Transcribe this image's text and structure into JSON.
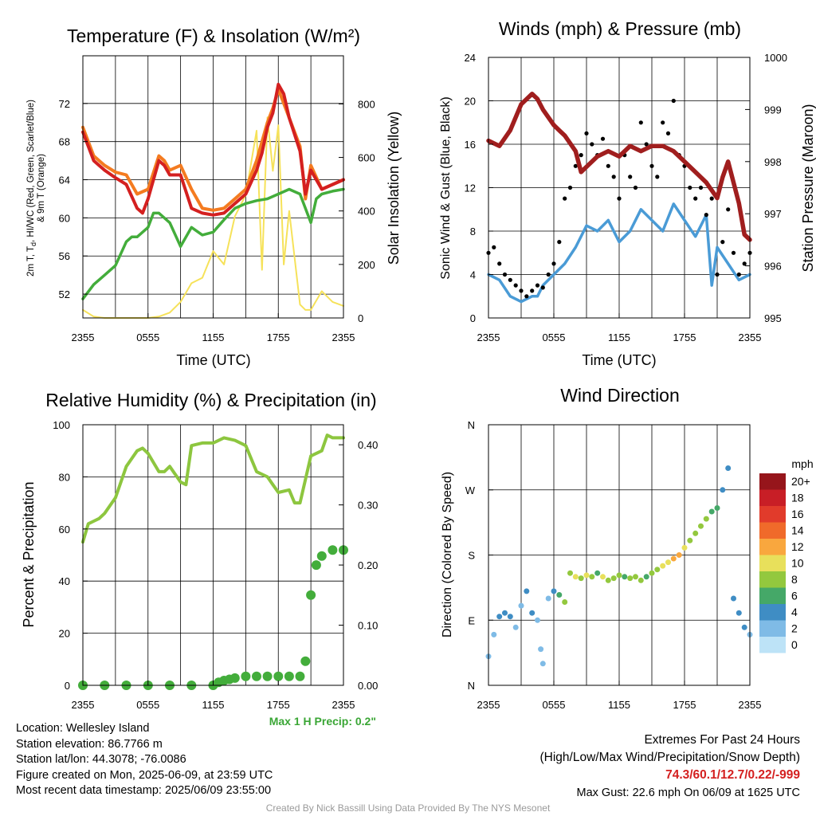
{
  "panels": {
    "temp": {
      "title": "Temperature (F) & Insolation (W/m²)",
      "ylabel_left_1": "2m T, T",
      "ylabel_left_sub": "d",
      "ylabel_left_2": ", HI/WC (Red, Green, Scarlet/Blue)",
      "ylabel_left_3": "& 9m T (Orange)",
      "ylabel_right": "Solar Insolation (Yellow)",
      "xlabel": "Time (UTC)"
    },
    "wind": {
      "title": "Winds (mph) & Pressure (mb)",
      "ylabel_left": "Sonic Wind & Gust (Blue, Black)",
      "ylabel_right": "Station Pressure (Maroon)",
      "xlabel": "Time (UTC)"
    },
    "rh": {
      "title": "Relative Humidity (%) & Precipitation (in)",
      "ylabel_left": "Percent & Precipitation",
      "max_precip": "Max 1 H Precip: 0.2\""
    },
    "dir": {
      "title": "Wind Direction",
      "ylabel_left": "Direction (Colored By Speed)",
      "legend_title": "mph"
    }
  },
  "chart_data": [
    {
      "type": "line",
      "title": "Temperature (F) & Insolation (W/m²)",
      "xlabel": "Time (UTC)",
      "x_ticks": [
        "2355",
        "0555",
        "1155",
        "1755",
        "2355"
      ],
      "x_hours": [
        0,
        24
      ],
      "ylim_left": [
        49.5,
        77
      ],
      "yticks_left": [
        52,
        56,
        60,
        64,
        68,
        72
      ],
      "ylim_right": [
        0,
        980
      ],
      "yticks_right": [
        0,
        200,
        400,
        600,
        800
      ],
      "series": [
        {
          "name": "9m T (Orange)",
          "axis": "left",
          "color": "#f47b20",
          "x": [
            0,
            0.5,
            1,
            1.5,
            2,
            3,
            4,
            5,
            6,
            7,
            7.5,
            8,
            9,
            10,
            11,
            12,
            13,
            14,
            15,
            16,
            17,
            17.5,
            18,
            18.5,
            19,
            20,
            20.5,
            21,
            22,
            23,
            24
          ],
          "y": [
            69.5,
            68,
            66.5,
            66,
            65.5,
            64.8,
            64.5,
            62.5,
            63,
            66.5,
            66,
            65,
            65.5,
            63,
            61,
            60.8,
            61,
            62,
            63,
            66,
            70,
            71.5,
            73.5,
            72,
            70.5,
            67.5,
            62,
            65.5,
            63,
            63.5,
            64
          ]
        },
        {
          "name": "2m T (Red)",
          "axis": "left",
          "color": "#d42020",
          "x": [
            0,
            0.5,
            1,
            1.5,
            2,
            3,
            4,
            5,
            5.5,
            6,
            7,
            7.5,
            8,
            9,
            10,
            11,
            12,
            13,
            14,
            15,
            16,
            16.5,
            17,
            17.5,
            18,
            18.5,
            19,
            20,
            20.5,
            21,
            22,
            23,
            24
          ],
          "y": [
            69,
            67.5,
            66,
            65.5,
            65,
            64.2,
            63.5,
            61,
            60.5,
            62,
            66,
            65.5,
            64.5,
            64.5,
            61,
            60.5,
            60.3,
            60.5,
            61.5,
            62.5,
            65,
            66.8,
            69.5,
            71,
            74,
            73,
            70.5,
            67,
            62.5,
            65,
            63,
            63.5,
            64
          ]
        },
        {
          "name": "Td (Green)",
          "axis": "left",
          "color": "#43ad3b",
          "x": [
            0,
            1,
            2,
            3,
            4,
            4.5,
            5,
            6,
            6.5,
            7,
            8,
            9,
            10,
            11,
            12,
            13,
            14,
            15,
            16,
            17,
            18,
            19,
            20,
            21,
            21.5,
            22,
            23,
            24
          ],
          "y": [
            51.5,
            53,
            54,
            55,
            57.5,
            58,
            58,
            59,
            60.5,
            60.5,
            59.5,
            57,
            59,
            58.2,
            58.5,
            59.8,
            61,
            61.5,
            61.8,
            62,
            62.5,
            63,
            62.5,
            59.5,
            62,
            62.5,
            62.8,
            63
          ]
        },
        {
          "name": "Solar Insolation (Yellow)",
          "axis": "right",
          "color": "#f6e25a",
          "x": [
            0,
            1,
            2,
            3,
            4,
            5,
            6,
            7,
            8,
            9,
            10,
            11,
            12,
            13,
            14,
            15,
            16,
            16.5,
            17,
            17.5,
            18,
            18.5,
            19,
            20,
            20.5,
            21,
            22,
            23,
            24
          ],
          "y": [
            30,
            5,
            0,
            0,
            0,
            0,
            0,
            5,
            20,
            60,
            130,
            150,
            250,
            200,
            380,
            460,
            700,
            180,
            750,
            550,
            720,
            200,
            400,
            50,
            30,
            30,
            100,
            60,
            45
          ]
        }
      ]
    },
    {
      "type": "line",
      "title": "Winds (mph) & Pressure (mb)",
      "xlabel": "Time (UTC)",
      "x_ticks": [
        "2355",
        "0555",
        "1155",
        "1755",
        "2355"
      ],
      "ylim_left": [
        0,
        24
      ],
      "yticks_left": [
        0,
        4,
        8,
        12,
        16,
        20,
        24
      ],
      "ylim_right": [
        995,
        1000
      ],
      "yticks_right": [
        995,
        996,
        997,
        998,
        999,
        1000
      ],
      "series": [
        {
          "name": "Sonic Wind (Blue)",
          "axis": "left",
          "color": "#4a9bd6",
          "x": [
            0,
            1,
            2,
            3,
            4,
            4.5,
            5,
            6,
            7,
            8,
            9,
            10,
            11,
            12,
            13,
            14,
            15,
            16,
            17,
            18,
            19,
            20,
            20.5,
            21,
            22,
            23,
            24
          ],
          "y": [
            4,
            3.5,
            2,
            1.5,
            2,
            2,
            3,
            4,
            5,
            6.5,
            8.5,
            8,
            9,
            7,
            8,
            10,
            9,
            8,
            10.5,
            9,
            7.5,
            9.5,
            3,
            6.5,
            5,
            3.5,
            4
          ]
        },
        {
          "name": "Gust (Black)",
          "axis": "left",
          "color": "#000000",
          "marks": "points",
          "x": [
            0,
            0.5,
            1,
            1.5,
            2,
            2.5,
            3,
            3.5,
            4,
            4.5,
            5,
            5.5,
            6,
            6.5,
            7,
            7.5,
            8,
            8.5,
            9,
            9.5,
            10,
            10.5,
            11,
            11.5,
            12,
            12.5,
            13,
            13.5,
            14,
            14.5,
            15,
            15.5,
            16,
            16.5,
            17,
            17.5,
            18,
            18.5,
            19,
            19.5,
            20,
            20.5,
            21,
            21.5,
            22,
            22.5,
            23,
            23.5,
            24
          ],
          "y": [
            6,
            6.5,
            5,
            4,
            3.5,
            3,
            2.5,
            2,
            2.5,
            3,
            2.8,
            4,
            5,
            7,
            11,
            12,
            14,
            15,
            17,
            16,
            15,
            16.5,
            14,
            13,
            11,
            15,
            13,
            12,
            18,
            16,
            14,
            13,
            18,
            17,
            20,
            15,
            14,
            12,
            11,
            12,
            9.5,
            11,
            4,
            7,
            10,
            6,
            4,
            5,
            6
          ]
        },
        {
          "name": "Station Pressure (Maroon)",
          "axis": "right",
          "color": "#a01e1e",
          "x": [
            0,
            1,
            2,
            3,
            4,
            4.5,
            5,
            6,
            6.5,
            7,
            8,
            8.5,
            9,
            10,
            11,
            12,
            13,
            14,
            15,
            16,
            17,
            18,
            19,
            20,
            21,
            21.5,
            22,
            23,
            23.5,
            24
          ],
          "y": [
            998.4,
            998.3,
            998.6,
            999.1,
            999.3,
            999.2,
            999,
            998.7,
            998.6,
            998.5,
            998.2,
            997.8,
            997.9,
            998.1,
            998.2,
            998.1,
            998.3,
            998.2,
            998.3,
            998.3,
            998.2,
            998,
            997.8,
            997.6,
            997.3,
            997.7,
            998,
            997.2,
            996.6,
            996.5
          ]
        }
      ]
    },
    {
      "type": "line",
      "title": "Relative Humidity (%) & Precipitation (in)",
      "x_ticks": [
        "2355",
        "0555",
        "1155",
        "1755",
        "2355"
      ],
      "ylim_left": [
        0,
        100
      ],
      "yticks_left": [
        0,
        20,
        40,
        60,
        80,
        100
      ],
      "ylim_right": [
        0,
        0.4333
      ],
      "yticks_right": [
        "0.00",
        "0.10",
        "0.20",
        "0.30",
        "0.40"
      ],
      "series": [
        {
          "name": "Relative Humidity",
          "axis": "left",
          "color": "#8dc63f",
          "x": [
            0,
            0.5,
            1,
            1.5,
            2,
            3,
            4,
            4.5,
            5,
            5.5,
            6,
            7,
            7.5,
            8,
            9,
            9.5,
            10,
            11,
            12,
            13,
            14,
            15,
            16,
            17,
            17.5,
            18,
            19,
            19.5,
            20,
            20.5,
            21,
            22,
            22.5,
            23,
            24
          ],
          "y": [
            55,
            62,
            63,
            64,
            66,
            72,
            84,
            87,
            90,
            91,
            89,
            82,
            82,
            84,
            78,
            77,
            92,
            93,
            93,
            95,
            94,
            92,
            82,
            80,
            77,
            74,
            75,
            70,
            70,
            79,
            88,
            90,
            96,
            95,
            95
          ]
        },
        {
          "name": "Precipitation",
          "axis": "right",
          "color": "#43ad3b",
          "marks": "points",
          "x": [
            0,
            2,
            4,
            6,
            8,
            10,
            12,
            12.5,
            13,
            13.5,
            14,
            15,
            16,
            17,
            18,
            19,
            20,
            20.5,
            21,
            21.5,
            22,
            23,
            24
          ],
          "y": [
            0,
            0,
            0,
            0,
            0,
            0,
            0,
            0.005,
            0.008,
            0.01,
            0.012,
            0.015,
            0.015,
            0.015,
            0.015,
            0.015,
            0.015,
            0.04,
            0.15,
            0.2,
            0.215,
            0.225,
            0.225
          ]
        }
      ],
      "annotation": "Max 1 H Precip: 0.2\""
    },
    {
      "type": "scatter",
      "title": "Wind Direction",
      "ylabel": "Direction (Colored By Speed)",
      "x_ticks": [
        "2355",
        "0555",
        "1155",
        "1755",
        "2355"
      ],
      "y_ticks": [
        "N",
        "E",
        "S",
        "W",
        "N"
      ],
      "ylim": [
        0,
        360
      ],
      "x": [
        0,
        0.5,
        1,
        1.5,
        2,
        2.5,
        3,
        3.5,
        4,
        4.5,
        4.8,
        5,
        5.5,
        6,
        6.5,
        7,
        7.5,
        8,
        8.5,
        9,
        9.5,
        10,
        10.5,
        11,
        11.5,
        12,
        12.5,
        13,
        13.5,
        14,
        14.5,
        15,
        15.5,
        16,
        16.5,
        17,
        17.5,
        18,
        18.5,
        19,
        19.5,
        20,
        20.5,
        21,
        21.5,
        22,
        22.5,
        23,
        23.5,
        24
      ],
      "y": [
        40,
        70,
        95,
        100,
        95,
        80,
        110,
        130,
        100,
        90,
        50,
        30,
        120,
        130,
        125,
        115,
        155,
        150,
        148,
        152,
        150,
        155,
        150,
        145,
        148,
        152,
        150,
        148,
        150,
        145,
        150,
        155,
        160,
        165,
        170,
        175,
        180,
        190,
        200,
        210,
        220,
        230,
        240,
        245,
        270,
        300,
        120,
        100,
        80,
        70
      ],
      "speeds": [
        2,
        2,
        4,
        3,
        4,
        2,
        1,
        4,
        3,
        1,
        1,
        2,
        2,
        4,
        6,
        8,
        8,
        10,
        7,
        10,
        8,
        6,
        9,
        8,
        7,
        8,
        6,
        7,
        8,
        8,
        6,
        8,
        8,
        9,
        10,
        12,
        12,
        10,
        8,
        8,
        8,
        7,
        6,
        6,
        4,
        3,
        4,
        4,
        3,
        2
      ],
      "legend_title": "mph",
      "legend": [
        {
          "label": "20+",
          "color": "#96151b"
        },
        {
          "label": "18",
          "color": "#c81e26"
        },
        {
          "label": "16",
          "color": "#e13b2b"
        },
        {
          "label": "14",
          "color": "#f06a2a"
        },
        {
          "label": "12",
          "color": "#f9a73e"
        },
        {
          "label": "10",
          "color": "#e8e05b"
        },
        {
          "label": "8",
          "color": "#93c83e"
        },
        {
          "label": "6",
          "color": "#45a868"
        },
        {
          "label": "4",
          "color": "#3f8dc4"
        },
        {
          "label": "2",
          "color": "#7fbbe6"
        },
        {
          "label": "0",
          "color": "#bde3f7"
        }
      ]
    }
  ],
  "info_left": [
    "Location: Wellesley Island",
    "Station elevation: 86.7766 m",
    "Station lat/lon: 44.3078; -76.0086",
    "Figure created on Mon, 2025-06-09, at 23:59 UTC",
    "Most recent data timestamp: 2025/06/09 23:55:00"
  ],
  "extremes": {
    "title": "Extremes For Past 24 Hours",
    "subtitle": "(High/Low/Max Wind/Precipitation/Snow Depth)",
    "values": "74.3/60.1/12.7/0.22/-999",
    "gust": "Max Gust: 22.6 mph On 06/09 at 1625 UTC",
    "values_color": "#d42020"
  },
  "footer": "Created By Nick Bassill Using Data Provided By The NYS Mesonet"
}
